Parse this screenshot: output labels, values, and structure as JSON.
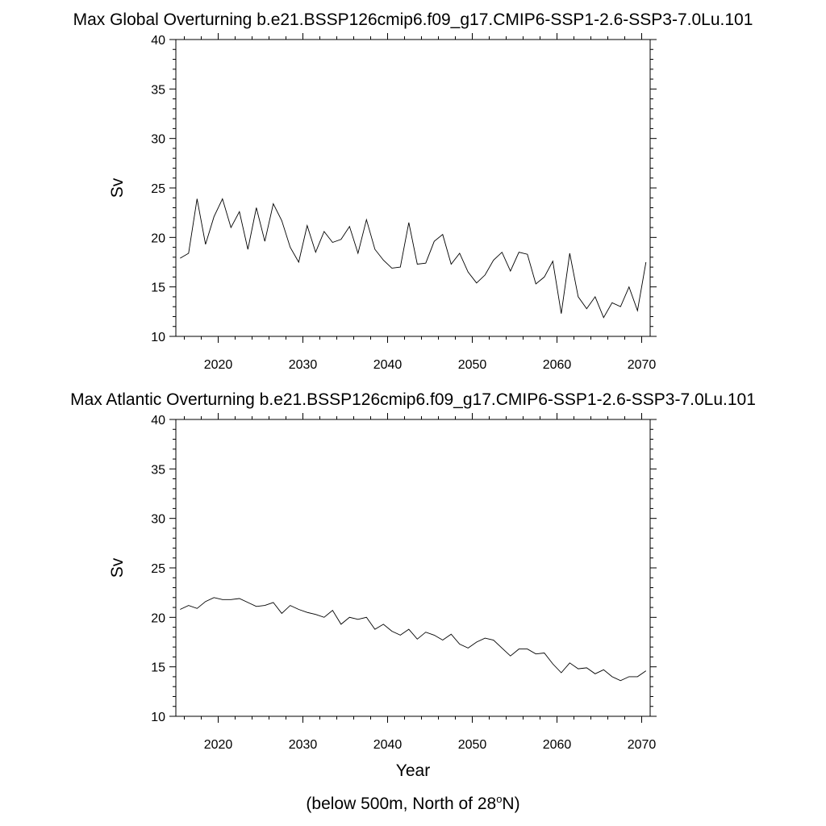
{
  "figure": {
    "xlabel": "Year",
    "footnote": {
      "prefix": "(below 500m, North of 28",
      "superscript": "o",
      "suffix": "N)"
    }
  },
  "chart_data": [
    {
      "type": "line",
      "title": "Max Global Overturning b.e21.BSSP126cmip6.f09_g17.CMIP6-SSP1-2.6-SSP3-7.0Lu.101",
      "xlabel": "",
      "ylabel": "Sv",
      "xlim": [
        2015,
        2071
      ],
      "ylim": [
        10,
        40
      ],
      "xticks": [
        2020,
        2030,
        2040,
        2050,
        2060,
        2070
      ],
      "xtick_labels": [
        "2020",
        "2030",
        "2040",
        "2050",
        "2060",
        "2070"
      ],
      "yticks": [
        10,
        15,
        20,
        25,
        30,
        35,
        40
      ],
      "ytick_labels": [
        "10",
        "15",
        "20",
        "25",
        "30",
        "35",
        "40"
      ],
      "grid": false,
      "series": [
        {
          "name": "Max Global Overturning",
          "x": [
            2015.5,
            2016.5,
            2017.5,
            2018.5,
            2019.5,
            2020.5,
            2021.5,
            2022.5,
            2023.5,
            2024.5,
            2025.5,
            2026.5,
            2027.5,
            2028.5,
            2029.5,
            2030.5,
            2031.5,
            2032.5,
            2033.5,
            2034.5,
            2035.5,
            2036.5,
            2037.5,
            2038.5,
            2039.5,
            2040.5,
            2041.5,
            2042.5,
            2043.5,
            2044.5,
            2045.5,
            2046.5,
            2047.5,
            2048.5,
            2049.5,
            2050.5,
            2051.5,
            2052.5,
            2053.5,
            2054.5,
            2055.5,
            2056.5,
            2057.5,
            2058.5,
            2059.5,
            2060.5,
            2061.5,
            2062.5,
            2063.5,
            2064.5,
            2065.5,
            2066.5,
            2067.5,
            2068.5,
            2069.5,
            2070.5
          ],
          "values": [
            17.9,
            18.4,
            23.9,
            19.3,
            22.1,
            23.9,
            21.0,
            22.6,
            18.8,
            23.0,
            19.6,
            23.4,
            21.7,
            19.0,
            17.5,
            21.2,
            18.5,
            20.6,
            19.5,
            19.8,
            21.1,
            18.4,
            21.8,
            18.8,
            17.7,
            16.9,
            17.0,
            21.5,
            17.3,
            17.4,
            19.6,
            20.3,
            17.3,
            18.4,
            16.5,
            15.4,
            16.2,
            17.7,
            18.5,
            16.6,
            18.5,
            18.3,
            15.3,
            16.0,
            17.6,
            12.3,
            18.4,
            14.0,
            12.8,
            14.0,
            11.9,
            13.4,
            13.0,
            15.0,
            12.6,
            17.5
          ]
        }
      ]
    },
    {
      "type": "line",
      "title": "Max Atlantic Overturning b.e21.BSSP126cmip6.f09_g17.CMIP6-SSP1-2.6-SSP3-7.0Lu.101",
      "xlabel": "Year",
      "ylabel": "Sv",
      "xlim": [
        2015,
        2071
      ],
      "ylim": [
        10,
        40
      ],
      "xticks": [
        2020,
        2030,
        2040,
        2050,
        2060,
        2070
      ],
      "xtick_labels": [
        "2020",
        "2030",
        "2040",
        "2050",
        "2060",
        "2070"
      ],
      "yticks": [
        10,
        15,
        20,
        25,
        30,
        35,
        40
      ],
      "ytick_labels": [
        "10",
        "15",
        "20",
        "25",
        "30",
        "35",
        "40"
      ],
      "grid": false,
      "series": [
        {
          "name": "Max Atlantic Overturning",
          "x": [
            2015.5,
            2016.5,
            2017.5,
            2018.5,
            2019.5,
            2020.5,
            2021.5,
            2022.5,
            2023.5,
            2024.5,
            2025.5,
            2026.5,
            2027.5,
            2028.5,
            2029.5,
            2030.5,
            2031.5,
            2032.5,
            2033.5,
            2034.5,
            2035.5,
            2036.5,
            2037.5,
            2038.5,
            2039.5,
            2040.5,
            2041.5,
            2042.5,
            2043.5,
            2044.5,
            2045.5,
            2046.5,
            2047.5,
            2048.5,
            2049.5,
            2050.5,
            2051.5,
            2052.5,
            2053.5,
            2054.5,
            2055.5,
            2056.5,
            2057.5,
            2058.5,
            2059.5,
            2060.5,
            2061.5,
            2062.5,
            2063.5,
            2064.5,
            2065.5,
            2066.5,
            2067.5,
            2068.5,
            2069.5,
            2070.5
          ],
          "values": [
            20.8,
            21.2,
            20.9,
            21.6,
            22.0,
            21.8,
            21.8,
            21.9,
            21.5,
            21.1,
            21.2,
            21.5,
            20.4,
            21.2,
            20.8,
            20.5,
            20.3,
            20.0,
            20.7,
            19.3,
            20.0,
            19.8,
            20.0,
            18.8,
            19.3,
            18.6,
            18.2,
            18.8,
            17.8,
            18.5,
            18.2,
            17.7,
            18.3,
            17.3,
            16.9,
            17.5,
            17.9,
            17.7,
            16.9,
            16.1,
            16.8,
            16.8,
            16.3,
            16.4,
            15.3,
            14.4,
            15.4,
            14.8,
            14.9,
            14.3,
            14.7,
            14.0,
            13.6,
            14.0,
            14.0,
            14.6
          ]
        }
      ]
    }
  ]
}
